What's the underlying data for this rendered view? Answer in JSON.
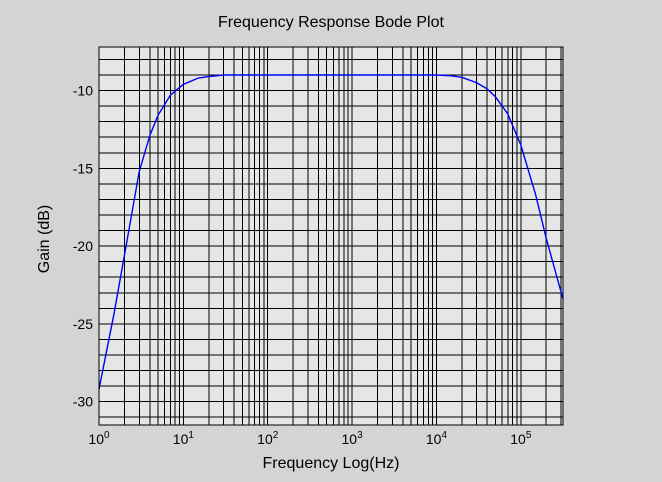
{
  "chart_data": {
    "type": "line",
    "title": "Frequency Response Bode Plot",
    "xlabel": "Frequency Log(Hz)",
    "ylabel": "Gain (dB)",
    "x_scale": "log",
    "xlim": [
      1,
      316228
    ],
    "ylim": [
      -31.5,
      -7.2
    ],
    "x_ticks": [
      {
        "base": "10",
        "exp": "0",
        "value": 1
      },
      {
        "base": "10",
        "exp": "1",
        "value": 10
      },
      {
        "base": "10",
        "exp": "2",
        "value": 100
      },
      {
        "base": "10",
        "exp": "3",
        "value": 1000
      },
      {
        "base": "10",
        "exp": "4",
        "value": 10000
      },
      {
        "base": "10",
        "exp": "5",
        "value": 100000
      }
    ],
    "y_ticks": [
      {
        "label": "-10",
        "value": -10
      },
      {
        "label": "-15",
        "value": -15
      },
      {
        "label": "-20",
        "value": -20
      },
      {
        "label": "-25",
        "value": -25
      },
      {
        "label": "-30",
        "value": -30
      }
    ],
    "grid": true,
    "grid_minor": true,
    "colors": {
      "background": "#d4d4d4",
      "plot_area": "#e6e6e6",
      "series": "#0000ff",
      "ylabel": "#0000ff",
      "grid": "#000000"
    },
    "series": [
      {
        "x": [
          1,
          1.5,
          2,
          3,
          4,
          5,
          7,
          10,
          15,
          20,
          30,
          50,
          100,
          300,
          1000,
          3000,
          10000,
          15000,
          20000,
          30000,
          40000,
          50000,
          70000,
          100000,
          150000,
          200000,
          316228
        ],
        "y": [
          -29.2,
          -24.4,
          -20.6,
          -15.2,
          -12.9,
          -11.6,
          -10.3,
          -9.6,
          -9.2,
          -9.1,
          -9.0,
          -9.0,
          -9.0,
          -9.0,
          -9.0,
          -9.0,
          -9.0,
          -9.05,
          -9.15,
          -9.5,
          -9.9,
          -10.4,
          -11.5,
          -13.5,
          -16.7,
          -19.5,
          -23.4
        ]
      }
    ]
  }
}
